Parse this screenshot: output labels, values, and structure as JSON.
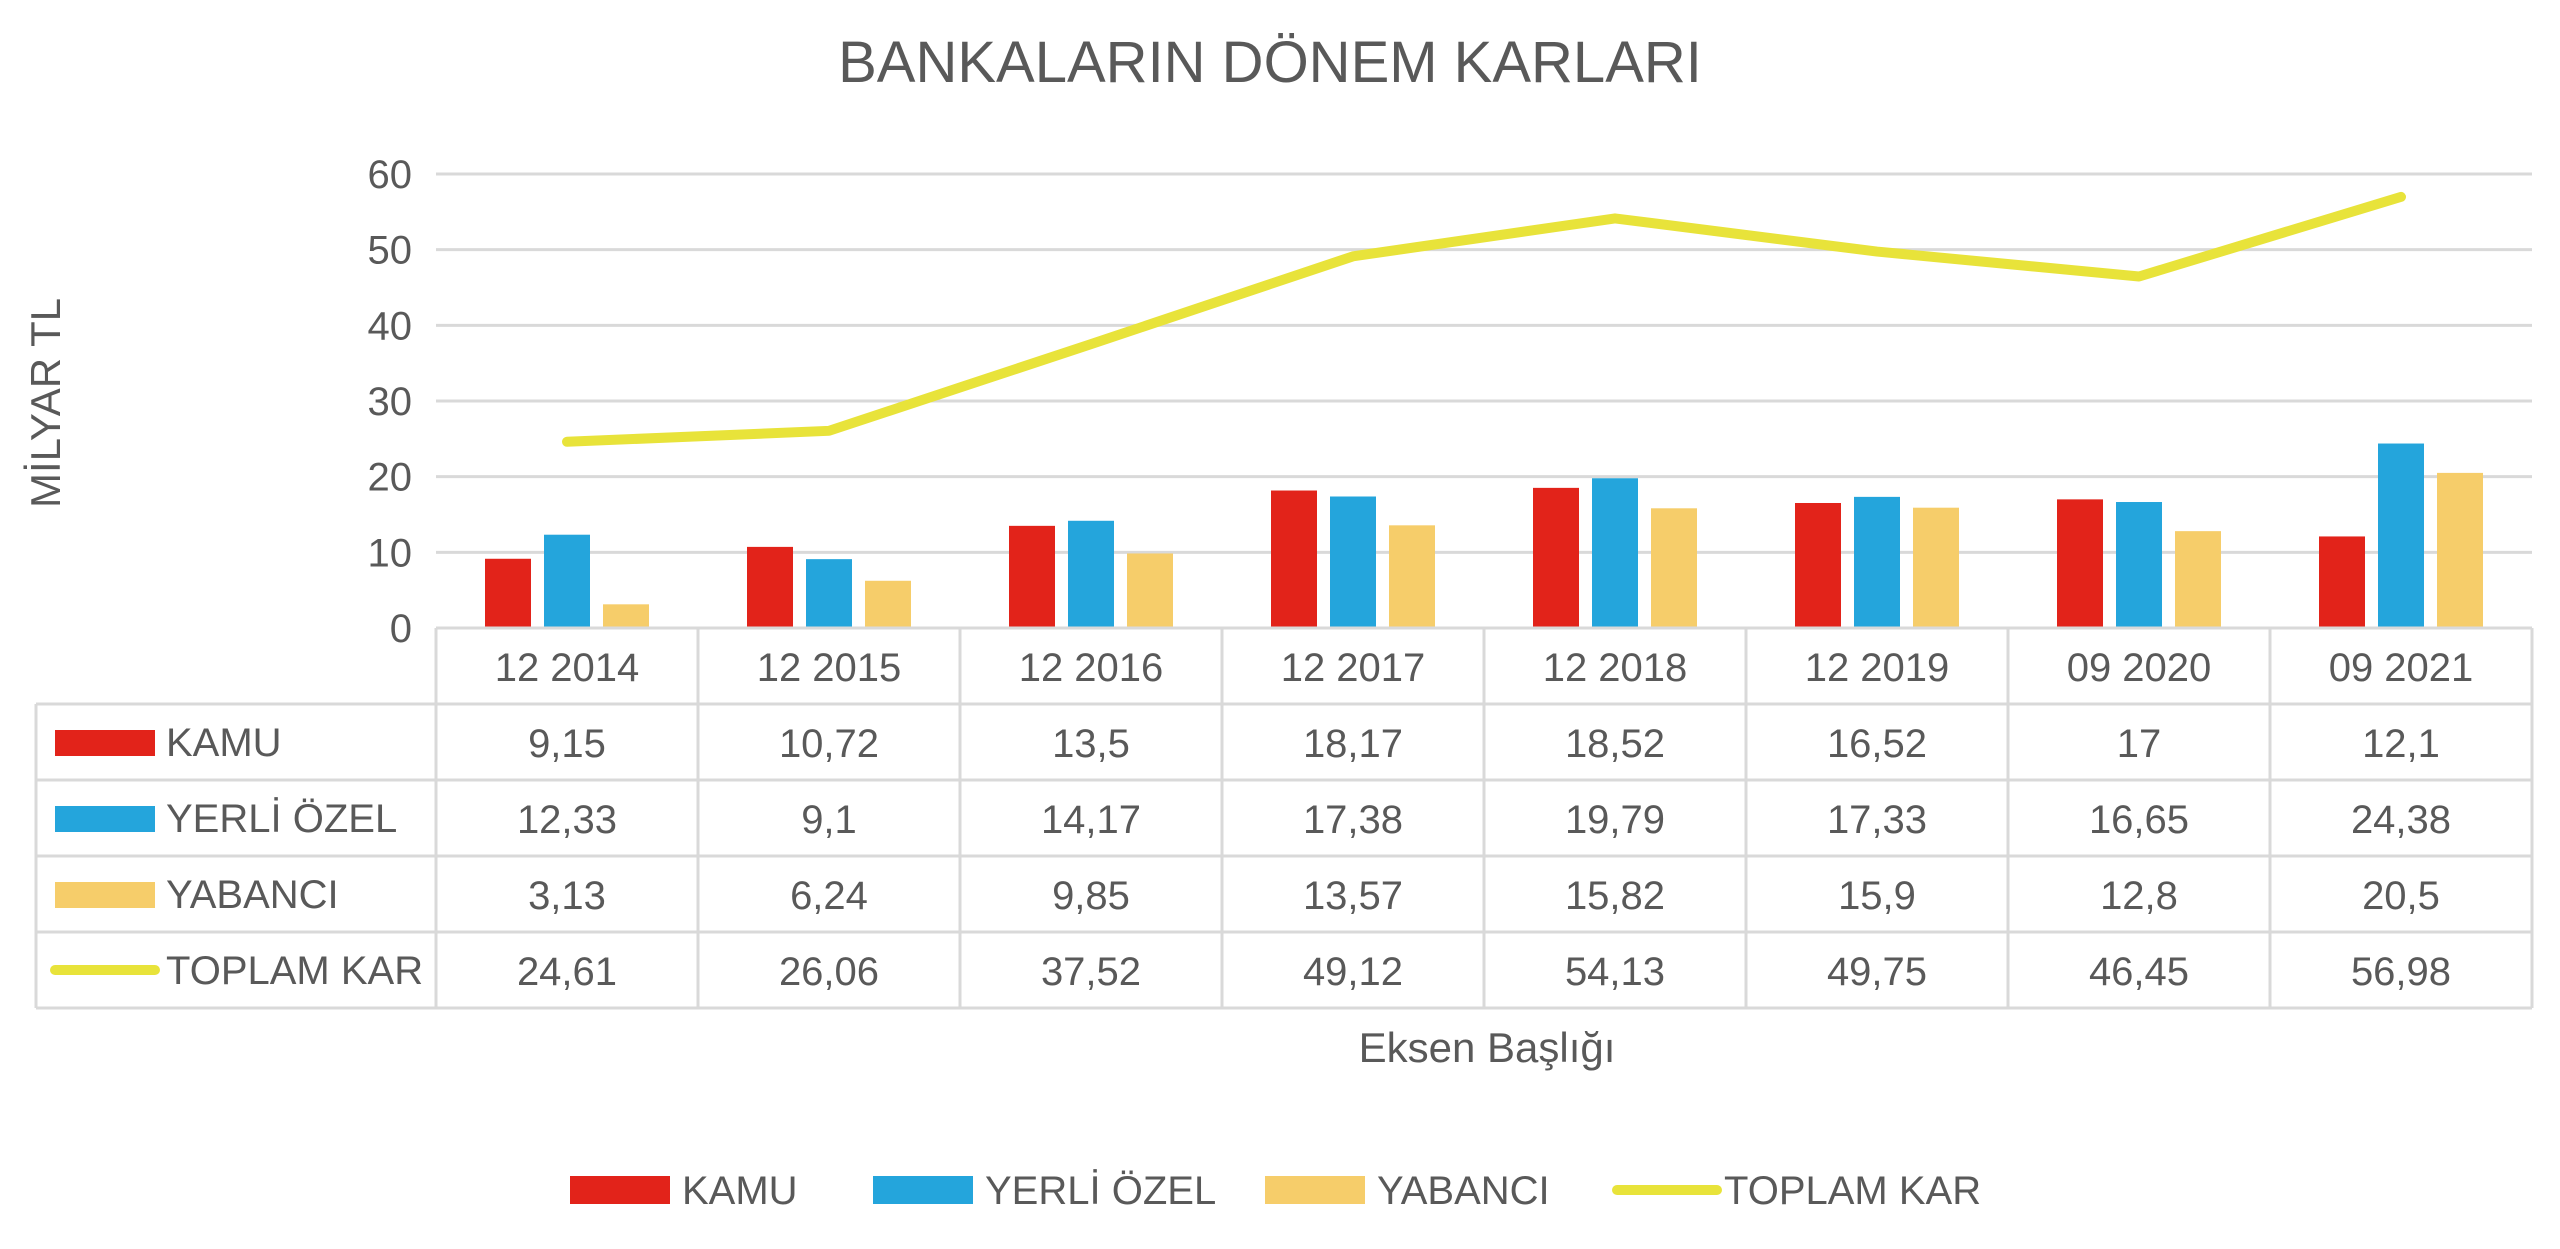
{
  "chart_data": {
    "type": "bar",
    "title": "BANKALARIN DÖNEM KARLARI",
    "ylabel": "MİLYAR TL",
    "xlabel": "Eksen Başlığı",
    "ylim": [
      0,
      60
    ],
    "yticks": [
      "0",
      "10",
      "20",
      "30",
      "40",
      "50",
      "60"
    ],
    "grid": true,
    "legend_position": "bottom",
    "data_table": true,
    "categories": [
      "12 2014",
      "12 2015",
      "12 2016",
      "12 2017",
      "12 2018",
      "12 2019",
      "09 2020",
      "09 2021"
    ],
    "series": [
      {
        "name": "KAMU",
        "kind": "bar",
        "color": "#E2231A",
        "values": [
          9.15,
          10.72,
          13.5,
          18.17,
          18.52,
          16.52,
          17,
          12.1
        ],
        "labels": [
          "9,15",
          "10,72",
          "13,5",
          "18,17",
          "18,52",
          "16,52",
          "17",
          "12,1"
        ]
      },
      {
        "name": "YERLİ ÖZEL",
        "kind": "bar",
        "color": "#24A5DC",
        "values": [
          12.33,
          9.1,
          14.17,
          17.38,
          19.79,
          17.33,
          16.65,
          24.38
        ],
        "labels": [
          "12,33",
          "9,1",
          "14,17",
          "17,38",
          "19,79",
          "17,33",
          "16,65",
          "24,38"
        ]
      },
      {
        "name": "YABANCI",
        "kind": "bar",
        "color": "#F6CD6A",
        "values": [
          3.13,
          6.24,
          9.85,
          13.57,
          15.82,
          15.9,
          12.8,
          20.5
        ],
        "labels": [
          "3,13",
          "6,24",
          "9,85",
          "13,57",
          "15,82",
          "15,9",
          "12,8",
          "20,5"
        ]
      },
      {
        "name": "TOPLAM KAR",
        "kind": "line",
        "color": "#E8E33A",
        "values": [
          24.61,
          26.06,
          37.52,
          49.12,
          54.13,
          49.75,
          46.45,
          56.98
        ],
        "labels": [
          "24,61",
          "26,06",
          "37,52",
          "49,12",
          "54,13",
          "49,75",
          "46,45",
          "56,98"
        ]
      }
    ]
  }
}
